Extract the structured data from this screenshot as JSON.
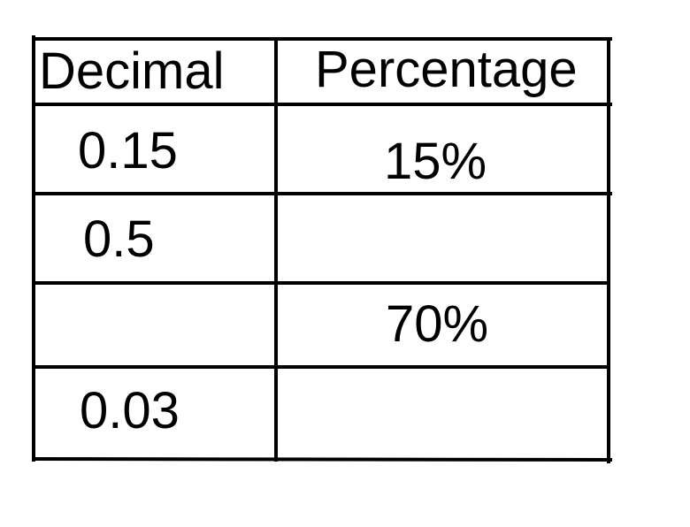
{
  "table": {
    "headers": [
      "Decimal",
      "Percentage"
    ],
    "rows": [
      {
        "decimal": "0.15",
        "percentage": "15%"
      },
      {
        "decimal": "0.5",
        "percentage": ""
      },
      {
        "decimal": "",
        "percentage": "70%"
      },
      {
        "decimal": "0.03",
        "percentage": ""
      }
    ]
  }
}
